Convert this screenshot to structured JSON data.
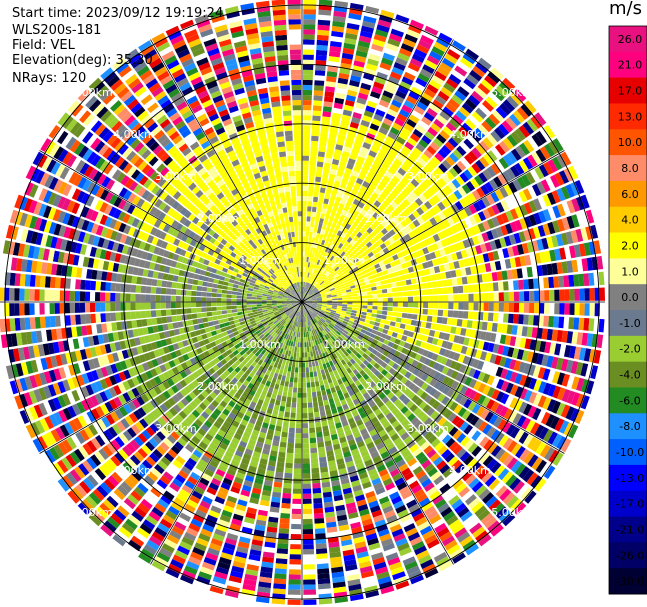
{
  "header": {
    "start_time": "Start time: 2023/09/12 19:19:24",
    "instrument": "WLS200s-181",
    "field": "Field: VEL",
    "elevation": "Elevation(deg): 35.30",
    "nrays": "NRays: 120"
  },
  "colorbar": {
    "title": "m/s",
    "levels": [
      {
        "label": "26.0",
        "color": "#e8117f"
      },
      {
        "label": "21.0",
        "color": "#ff007f"
      },
      {
        "label": "17.0",
        "color": "#e60000"
      },
      {
        "label": "13.0",
        "color": "#ff2a00"
      },
      {
        "label": "10.0",
        "color": "#ff5500"
      },
      {
        "label": "8.0",
        "color": "#ff8c69"
      },
      {
        "label": "6.0",
        "color": "#ff9900"
      },
      {
        "label": "4.0",
        "color": "#ffcc00"
      },
      {
        "label": "2.0",
        "color": "#ffff00"
      },
      {
        "label": "1.0",
        "color": "#ffff99"
      },
      {
        "label": "0.0",
        "color": "#808080"
      },
      {
        "label": "-1.0",
        "color": "#6b7a8f"
      },
      {
        "label": "-2.0",
        "color": "#9acd32"
      },
      {
        "label": "-4.0",
        "color": "#6b8e23"
      },
      {
        "label": "-6.0",
        "color": "#228b22"
      },
      {
        "label": "-8.0",
        "color": "#1e90ff"
      },
      {
        "label": "-10.0",
        "color": "#0060ff"
      },
      {
        "label": "-13.0",
        "color": "#0000ff"
      },
      {
        "label": "-17.0",
        "color": "#0000cd"
      },
      {
        "label": "-21.0",
        "color": "#00008b"
      },
      {
        "label": "-26.0",
        "color": "#000066"
      },
      {
        "label": "-30.0",
        "color": "#000033"
      }
    ]
  },
  "chart_data": {
    "type": "heatmap",
    "projection": "polar PPI",
    "nrays": 120,
    "range_rings": [
      "1.00km",
      "2.00km",
      "3.00km",
      "4.00km",
      "5.00km"
    ],
    "range_ring_values_km": [
      1,
      2,
      3,
      4,
      5
    ],
    "max_range_km": 5.1,
    "ring_label_azimuths_deg": [
      315,
      135,
      45,
      225
    ],
    "spoke_interval_deg": 30,
    "pattern_description": "positive velocities (yellow) toward north-northeast inner half, negative velocities (green/olive) toward south-southwest, noisy multicolor beyond ~3.2 km"
  }
}
